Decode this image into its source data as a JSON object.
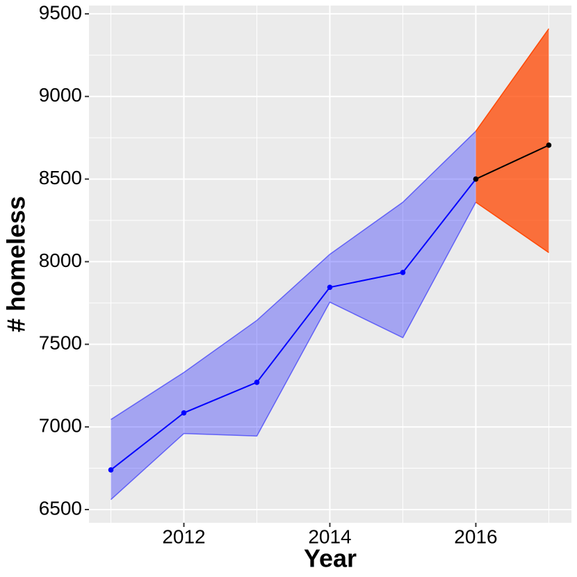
{
  "chart_data": {
    "type": "line",
    "x_label": "Year",
    "y_label": "# homeless",
    "x": [
      2011,
      2012,
      2013,
      2014,
      2015,
      2016,
      2017
    ],
    "xlim": [
      2010.7,
      2017.31
    ],
    "xticks": [
      2012,
      2014,
      2016
    ],
    "ylim": [
      6420,
      9550
    ],
    "yticks": [
      6500,
      7000,
      7500,
      8000,
      8500,
      9000,
      9500
    ],
    "grid": true,
    "series": [
      {
        "color": "#0000ff",
        "band_color": "#0000ff",
        "band_opacity": 0.3,
        "values": [
          6740,
          7085,
          7270,
          7845,
          7935,
          8500,
          null
        ],
        "lower": [
          6560,
          6960,
          6945,
          7755,
          7540,
          8360,
          null
        ],
        "upper": [
          7045,
          7330,
          7645,
          8045,
          8360,
          8790,
          null
        ]
      },
      {
        "color": "#000000",
        "band_color": "#ff4500",
        "band_opacity": 0.75,
        "values": [
          null,
          null,
          null,
          null,
          null,
          8500,
          8705
        ],
        "lower": [
          null,
          null,
          null,
          null,
          null,
          8360,
          8055
        ],
        "upper": [
          null,
          null,
          null,
          null,
          null,
          8790,
          9410
        ]
      }
    ]
  }
}
